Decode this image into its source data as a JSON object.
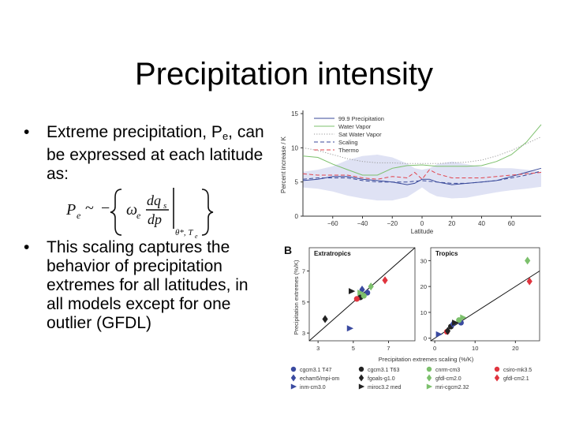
{
  "slide": {
    "title": "Precipitation intensity",
    "bullets": [
      {
        "dot": "•",
        "pre": "Extreme precipitation, P",
        "sub": "e",
        "post": ", can be expressed at each latitude as:"
      },
      {
        "dot": "•",
        "text": "This scaling captures the behavior of precipitation extremes for all latitudes, in all models except for one outlier (GFDL)"
      }
    ],
    "equation": {
      "lhs": "P",
      "lhs_sub": "e",
      "sim": "~",
      "minus": "−",
      "omega": "ω",
      "omega_sub": "e",
      "dq": "dq",
      "dq_sub": "s",
      "dp": "dp",
      "eval": "θ*, T",
      "eval_sub": "e"
    }
  },
  "figure": {
    "panel_a": {
      "chart_data": {
        "type": "line",
        "ylabel": "Percent increase / K",
        "xlabel": "Latitude",
        "xlim": [
          -80,
          80
        ],
        "ylim": [
          0,
          15
        ],
        "xticks": [
          "−60",
          "−40",
          "−20",
          "0",
          "20",
          "40",
          "60"
        ],
        "xtick_values": [
          -60,
          -40,
          -20,
          0,
          20,
          40,
          60
        ],
        "yticks": [
          "0",
          "5",
          "10",
          "15"
        ],
        "ytick_values": [
          0,
          5,
          10,
          15
        ],
        "legend_position": "top",
        "band": {
          "x": [
            -80,
            -70,
            -60,
            -50,
            -40,
            -30,
            -20,
            -10,
            -5,
            0,
            5,
            10,
            20,
            30,
            40,
            50,
            60,
            70,
            80
          ],
          "upper": [
            6.5,
            6.8,
            7.3,
            8.2,
            8.8,
            9.0,
            8.6,
            7.7,
            7.0,
            6.8,
            7.0,
            7.6,
            8.0,
            7.6,
            7.2,
            7.0,
            7.0,
            6.8,
            6.5
          ],
          "lower": [
            4.2,
            4.0,
            3.6,
            3.0,
            2.6,
            2.3,
            2.3,
            2.8,
            3.5,
            4.2,
            3.4,
            2.9,
            2.6,
            2.7,
            3.1,
            3.5,
            3.8,
            4.0,
            4.3
          ]
        },
        "series": [
          {
            "name": "99.9 Precipitation",
            "style": "solid",
            "color": "#3a4a9a",
            "x": [
              -80,
              -70,
              -60,
              -50,
              -40,
              -30,
              -20,
              -10,
              -5,
              0,
              5,
              10,
              20,
              30,
              40,
              50,
              60,
              70,
              80
            ],
            "values": [
              5.2,
              5.4,
              5.8,
              5.8,
              5.4,
              5.2,
              5.0,
              4.6,
              4.8,
              5.4,
              5.4,
              5.0,
              4.6,
              4.8,
              5.0,
              5.2,
              5.8,
              6.4,
              7.0
            ]
          },
          {
            "name": "Water Vapor",
            "style": "solid",
            "color": "#7cc06c",
            "x": [
              -80,
              -70,
              -60,
              -50,
              -40,
              -30,
              -20,
              -10,
              0,
              10,
              20,
              30,
              40,
              50,
              60,
              70,
              80
            ],
            "values": [
              8.8,
              8.6,
              7.6,
              6.8,
              6.0,
              6.0,
              7.0,
              7.4,
              7.5,
              7.3,
              7.3,
              7.3,
              7.4,
              8.0,
              9.0,
              10.8,
              13.4
            ]
          },
          {
            "name": "Sat Water Vapor",
            "style": "dotted",
            "color": "#9a9a9a",
            "x": [
              -80,
              -70,
              -60,
              -50,
              -40,
              -30,
              -20,
              -10,
              0,
              10,
              20,
              30,
              40,
              50,
              60,
              70,
              80
            ],
            "values": [
              10.0,
              9.6,
              9.0,
              8.4,
              8.0,
              7.8,
              7.8,
              7.7,
              7.7,
              7.7,
              7.8,
              7.9,
              8.2,
              8.8,
              9.6,
              10.6,
              11.6
            ]
          },
          {
            "name": "Scaling",
            "style": "dashed",
            "color": "#3a4a9a",
            "x": [
              -80,
              -70,
              -60,
              -50,
              -40,
              -30,
              -20,
              -10,
              0,
              10,
              20,
              30,
              40,
              50,
              60,
              70,
              80
            ],
            "values": [
              5.4,
              5.6,
              5.6,
              5.6,
              5.2,
              5.0,
              5.0,
              5.0,
              5.2,
              5.0,
              4.8,
              4.8,
              5.0,
              5.2,
              5.6,
              6.0,
              6.6
            ]
          },
          {
            "name": "Thermo",
            "style": "dashed",
            "color": "#e0444e",
            "x": [
              -80,
              -70,
              -60,
              -50,
              -40,
              -30,
              -20,
              -10,
              -5,
              0,
              5,
              10,
              20,
              30,
              40,
              50,
              60,
              70,
              80
            ],
            "values": [
              6.2,
              6.0,
              6.0,
              6.0,
              5.6,
              5.4,
              5.8,
              5.6,
              6.4,
              5.4,
              6.8,
              6.2,
              5.6,
              5.6,
              5.6,
              5.8,
              6.0,
              6.2,
              6.4
            ]
          }
        ]
      }
    },
    "panel_b": {
      "label": "B",
      "ylabel": "Precipitation extremes (%/K)",
      "xlabel": "Precipitation extremes scaling (%/K)",
      "extratropics": {
        "chart_data": {
          "type": "scatter",
          "title": "Extratropics",
          "xlim": [
            2.5,
            8.5
          ],
          "ylim": [
            2.5,
            8.5
          ],
          "xticks": [
            "3",
            "5",
            "7"
          ],
          "xtick_values": [
            3,
            5,
            7
          ],
          "yticks": [
            "3",
            "5",
            "7"
          ],
          "ytick_values": [
            3,
            5,
            7
          ],
          "points": [
            {
              "model": "cgcm3.1 T47",
              "x": 5.8,
              "y": 5.6
            },
            {
              "model": "cgcm3.1 T63",
              "x": 5.4,
              "y": 5.3
            },
            {
              "model": "cnrm-cm3",
              "x": 5.6,
              "y": 5.4
            },
            {
              "model": "csiro-mk3.5",
              "x": 5.2,
              "y": 5.2
            },
            {
              "model": "echam5/mpi-om",
              "x": 5.5,
              "y": 5.8
            },
            {
              "model": "fgoals-g1.0",
              "x": 3.4,
              "y": 3.9
            },
            {
              "model": "gfdl-cm2.0",
              "x": 6.0,
              "y": 6.0
            },
            {
              "model": "gfdl-cm2.1",
              "x": 6.8,
              "y": 6.4
            },
            {
              "model": "inm-cm3.0",
              "x": 4.8,
              "y": 3.3
            },
            {
              "model": "miroc3.2 med",
              "x": 4.9,
              "y": 5.7
            },
            {
              "model": "mri-cgcm2.32",
              "x": 5.4,
              "y": 5.6
            }
          ]
        }
      },
      "tropics": {
        "chart_data": {
          "type": "scatter",
          "title": "Tropics",
          "xlim": [
            -1,
            26
          ],
          "ylim": [
            -1,
            35
          ],
          "xticks": [
            "0",
            "10",
            "20"
          ],
          "xtick_values": [
            0,
            10,
            20
          ],
          "yticks": [
            "0",
            "10",
            "20",
            "30"
          ],
          "ytick_values": [
            0,
            10,
            20,
            30
          ],
          "points": [
            {
              "model": "cgcm3.1 T47",
              "x": 6.5,
              "y": 6.0
            },
            {
              "model": "cgcm3.1 T63",
              "x": 4.0,
              "y": 4.5
            },
            {
              "model": "cnrm-cm3",
              "x": 6.0,
              "y": 7.0
            },
            {
              "model": "csiro-mk3.5",
              "x": 3.0,
              "y": 2.5
            },
            {
              "model": "echam5/mpi-om",
              "x": 4.5,
              "y": 5.5
            },
            {
              "model": "fgoals-g1.0",
              "x": 3.2,
              "y": 2.8
            },
            {
              "model": "gfdl-cm2.0",
              "x": 23.0,
              "y": 30.0
            },
            {
              "model": "gfdl-cm2.1",
              "x": 23.5,
              "y": 22.0
            },
            {
              "model": "inm-cm3.0",
              "x": 1.0,
              "y": 1.5
            },
            {
              "model": "miroc3.2 med",
              "x": 5.0,
              "y": 6.0
            },
            {
              "model": "mri-cgcm2.32",
              "x": 7.0,
              "y": 8.0
            }
          ]
        }
      },
      "legend": [
        {
          "label": "cgcm3.1 T47",
          "shape": "circle",
          "color": "#3a4aa0"
        },
        {
          "label": "cgcm3.1 T63",
          "shape": "circle",
          "color": "#222222"
        },
        {
          "label": "cnrm-cm3",
          "shape": "circle",
          "color": "#7cc06c"
        },
        {
          "label": "csiro-mk3.5",
          "shape": "circle",
          "color": "#e0343e"
        },
        {
          "label": "echam5/mpi-om",
          "shape": "diamond",
          "color": "#3a4aa0"
        },
        {
          "label": "fgoals-g1.0",
          "shape": "diamond",
          "color": "#222222"
        },
        {
          "label": "gfdl-cm2.0",
          "shape": "diamond",
          "color": "#7cc06c"
        },
        {
          "label": "gfdl-cm2.1",
          "shape": "diamond",
          "color": "#e0343e"
        },
        {
          "label": "inm-cm3.0",
          "shape": "triangle",
          "color": "#3a4aa0"
        },
        {
          "label": "miroc3.2 med",
          "shape": "triangle",
          "color": "#222222"
        },
        {
          "label": "mri-cgcm2.32",
          "shape": "triangle",
          "color": "#7cc06c"
        }
      ]
    }
  }
}
